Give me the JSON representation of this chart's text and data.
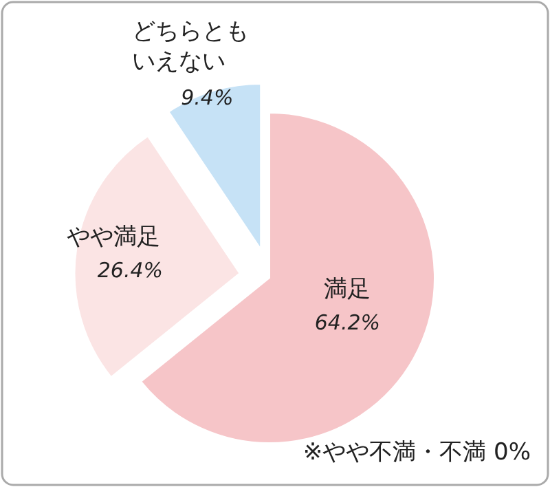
{
  "chart_data": {
    "type": "pie",
    "categories": [
      "満足",
      "やや満足",
      "どちらともいえない"
    ],
    "values": [
      64.2,
      26.4,
      9.4
    ],
    "value_labels": [
      "64.2%",
      "26.4%",
      "9.4%"
    ],
    "colors": [
      "#f6c5c8",
      "#fbe4e4",
      "#c6e2f6"
    ],
    "annotations": [
      "※やや不満・不満 0%"
    ]
  }
}
